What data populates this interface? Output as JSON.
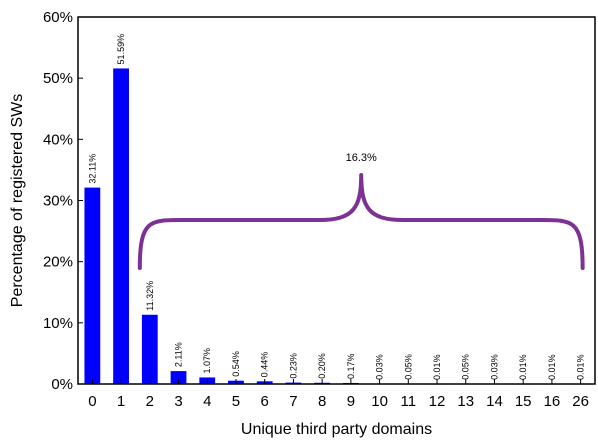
{
  "chart_data": {
    "type": "bar",
    "xlabel": "Unique third party domains",
    "ylabel": "Percentage of registered SWs",
    "categories": [
      "0",
      "1",
      "2",
      "3",
      "4",
      "5",
      "6",
      "7",
      "8",
      "9",
      "10",
      "11",
      "12",
      "13",
      "14",
      "15",
      "16",
      "26"
    ],
    "values": [
      32.11,
      51.59,
      11.32,
      2.11,
      1.07,
      0.54,
      0.44,
      0.23,
      0.2,
      0.17,
      0.03,
      0.05,
      0.01,
      0.05,
      0.03,
      0.01,
      0.01,
      0.01
    ],
    "data_labels": [
      "32.11%",
      "51.59%",
      "11.32%",
      "2.11%",
      "1.07%",
      "0.54%",
      "0.44%",
      "0.23%",
      "0.20%",
      "0.17%",
      "0.03%",
      "0.05%",
      "0.01%",
      "0.05%",
      "0.03%",
      "0.01%",
      "0.01%",
      "0.01%"
    ],
    "ylim": [
      0,
      60
    ],
    "yticks": [
      0,
      10,
      20,
      30,
      40,
      50,
      60
    ],
    "ytick_labels": [
      "0%",
      "10%",
      "20%",
      "30%",
      "40%",
      "50%",
      "60%"
    ],
    "grid": false,
    "bar_color": "#0000ff",
    "annotation": {
      "text": "16.3%",
      "brace_from_category": "2",
      "brace_to_category": "26",
      "color": "#7b3294"
    }
  }
}
